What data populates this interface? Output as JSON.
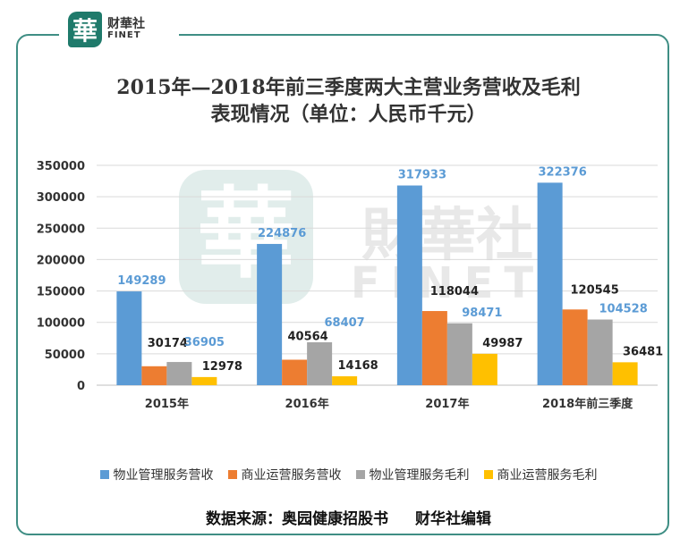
{
  "logo": {
    "mark": "華",
    "name_cn": "财華社",
    "name_en": "FINET"
  },
  "watermark": {
    "mark": "華",
    "cn": "財華社",
    "en": "FINET"
  },
  "source": {
    "left": "数据来源：奥园健康招股书",
    "right": "财华社编辑"
  },
  "colors": {
    "blue": "#5b9bd5",
    "orange": "#ed7d31",
    "gray": "#a5a5a5",
    "yellow": "#ffc000",
    "frame": "#3f8e84"
  },
  "chart_data": {
    "type": "bar",
    "title_lines": [
      "2015年—2018年前三季度两大主营业务营收及毛利",
      "表现情况（单位：人民币千元）"
    ],
    "categories": [
      "2015年",
      "2016年",
      "2017年",
      "2018年前三季度"
    ],
    "series": [
      {
        "name": "物业管理服务营收",
        "color": "#5b9bd5",
        "label_color": "#5b9bd5",
        "values": [
          149289,
          224876,
          317933,
          322376
        ]
      },
      {
        "name": "商业运营服务营收",
        "color": "#ed7d31",
        "label_color": "#222222",
        "values": [
          30174,
          40564,
          118044,
          120545
        ]
      },
      {
        "name": "物业管理服务毛利",
        "color": "#a5a5a5",
        "label_color": "#5b9bd5",
        "values": [
          36905,
          68407,
          98471,
          104528
        ]
      },
      {
        "name": "商业运营服务毛利",
        "color": "#ffc000",
        "label_color": "#222222",
        "values": [
          12978,
          14168,
          49987,
          36481
        ]
      }
    ],
    "ylim": [
      0,
      350000
    ],
    "yticks": [
      0,
      50000,
      100000,
      150000,
      200000,
      250000,
      300000,
      350000
    ],
    "grid": true,
    "legend": "bottom"
  }
}
